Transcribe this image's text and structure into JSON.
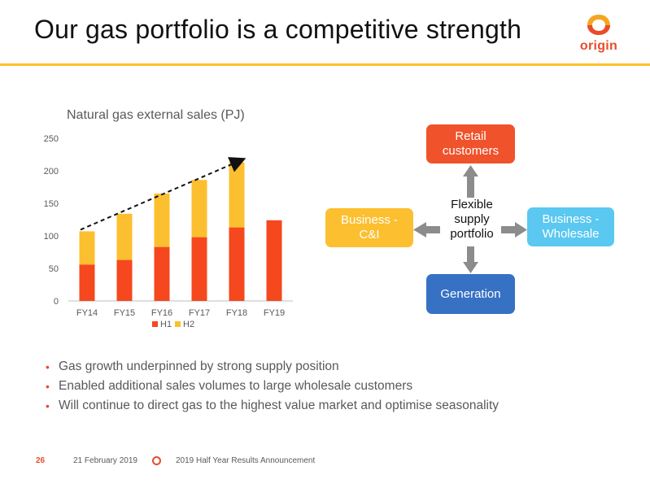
{
  "slide": {
    "title": "Our gas portfolio is a competitive strength",
    "logo_text": "origin"
  },
  "colors": {
    "accent_orange": "#fcbf2f",
    "brand_red": "#e84c2a",
    "retail": "#f0522b",
    "business_ci": "#fcbf2f",
    "business_wholesale": "#5ac8f0",
    "generation": "#3671c4",
    "arrow_gray": "#8c8c8c"
  },
  "chart_data": {
    "type": "bar",
    "stacked": true,
    "title": "Natural gas external sales (PJ)",
    "categories": [
      "FY14",
      "FY15",
      "FY16",
      "FY17",
      "FY18",
      "FY19"
    ],
    "series": [
      {
        "name": "H1",
        "color": "#f5481e",
        "values": [
          56,
          63,
          83,
          98,
          113,
          124
        ]
      },
      {
        "name": "H2",
        "color": "#fcbf2f",
        "values": [
          51,
          71,
          82,
          88,
          100,
          0
        ]
      }
    ],
    "ylim": [
      0,
      250
    ],
    "yticks": [
      0,
      50,
      100,
      150,
      200,
      250
    ],
    "grid": false,
    "legend": "bottom",
    "annotation": "dashed trend arrow from FY14 to FY18 totals"
  },
  "diagram": {
    "hub": "Flexible supply portfolio",
    "retail": "Retail customers",
    "business_ci": "Business - C&I",
    "business_wholesale": "Business - Wholesale",
    "generation": "Generation"
  },
  "bullets": [
    "Gas growth underpinned by strong supply position",
    "Enabled additional sales volumes to large wholesale customers",
    "Will continue to direct gas to the highest value market and optimise seasonality"
  ],
  "footer": {
    "page": "26",
    "date": "21 February 2019",
    "event": "2019 Half Year Results Announcement"
  }
}
